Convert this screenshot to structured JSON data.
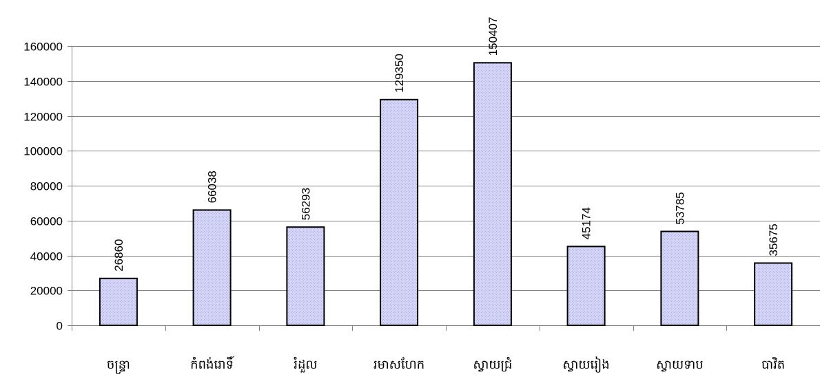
{
  "chart_data": {
    "type": "bar",
    "title": "",
    "xlabel": "",
    "ylabel": "",
    "categories": [
      "ចន្ទ្រា",
      "កំពង់រោទិ៍",
      "រំដួល",
      "រមាសហែក",
      "ស្វាយជ្រំ",
      "ស្វាយរៀង",
      "ស្វាយទាប",
      "បាវិត"
    ],
    "values": [
      26860,
      66038,
      56293,
      129350,
      150407,
      45174,
      53785,
      35675
    ],
    "ylim": [
      0,
      160000
    ],
    "yticks": [
      0,
      20000,
      40000,
      60000,
      80000,
      100000,
      120000,
      140000,
      160000
    ],
    "grid": true,
    "legend": "none",
    "data_labels": true,
    "bar_color": "#C8C8F4"
  }
}
